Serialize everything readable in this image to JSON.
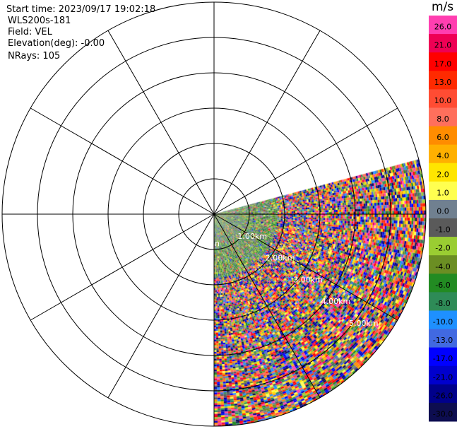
{
  "header": {
    "start_time": "Start time: 2023/09/17 19:02:18",
    "instrument": "WLS200s-181",
    "field": "Field: VEL",
    "elevation": "Elevation(deg): -0.00",
    "nrays": "NRays: 105"
  },
  "chart_data": {
    "type": "heatmap",
    "projection": "polar-ppi",
    "range_rings_km": [
      1,
      2,
      3,
      4,
      5,
      6
    ],
    "ring_labels": [
      "1.00km",
      "2.00km",
      "3.00km",
      "4.00km",
      "5.00km"
    ],
    "center_label": "n",
    "azimuth_spokes_deg": [
      0,
      30,
      60,
      90,
      120,
      150,
      180,
      210,
      240,
      270,
      300,
      330
    ],
    "sector_az_deg": [
      75,
      180
    ],
    "max_range_km": 6,
    "grid": true,
    "colorbar": {
      "unit": "m/s",
      "labels": [
        "26.0",
        "21.0",
        "17.0",
        "13.0",
        "10.0",
        "8.0",
        "6.0",
        "4.0",
        "2.0",
        "1.0",
        "0.0",
        "-1.0",
        "-2.0",
        "-4.0",
        "-6.0",
        "-8.0",
        "-10.0",
        "-13.0",
        "-17.0",
        "-21.0",
        "-26.0",
        "-30.0"
      ],
      "colors": [
        "#ff3eb0",
        "#ee0054",
        "#ff0000",
        "#ff2a00",
        "#ff4c33",
        "#ff6f5c",
        "#ff8c00",
        "#ffb000",
        "#ffe500",
        "#ffff50",
        "#708090",
        "#5a5a5a",
        "#9acd32",
        "#6b8e23",
        "#228b22",
        "#2e8b57",
        "#1e90ff",
        "#4169e1",
        "#0000ff",
        "#0000cd",
        "#00008b",
        "#0d0d50"
      ]
    }
  }
}
